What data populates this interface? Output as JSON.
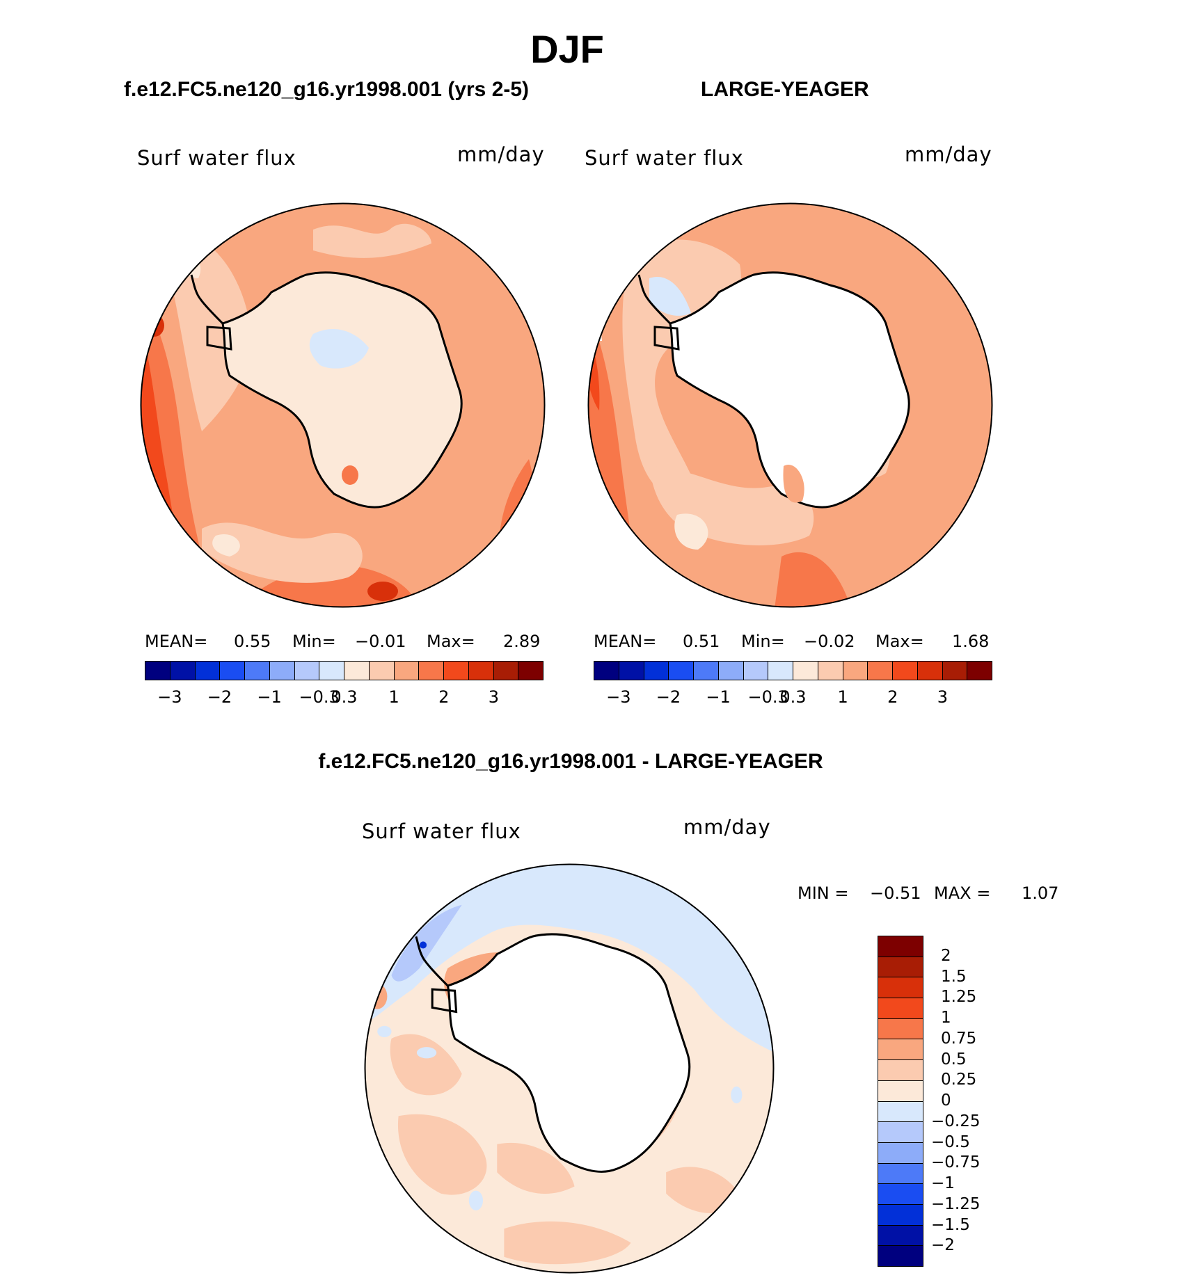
{
  "title": "DJF",
  "palette": [
    "#00007f",
    "#0011a6",
    "#0230d8",
    "#1a4df2",
    "#4d7af8",
    "#8dacf9",
    "#b5c9fb",
    "#d8e8fc",
    "#fce9d9",
    "#fbcbb0",
    "#f9a77f",
    "#f7774a",
    "#f2491c",
    "#d8300a",
    "#a81d05",
    "#7d0000"
  ],
  "panels": [
    {
      "title": "f.e12.FC5.ne120_g16.yr1998.001 (yrs 2-5)",
      "left_label": "Surf water flux",
      "right_label": "mm/day",
      "mean_label": "MEAN=",
      "mean": "0.55",
      "min_label": "Min=",
      "min": "−0.01",
      "max_label": "Max=",
      "max": "2.89",
      "colorbar_ticks": [
        "−3",
        "−2",
        "−1",
        "−0.3",
        "0.3",
        "1",
        "2",
        "3"
      ]
    },
    {
      "title": "LARGE-YEAGER",
      "left_label": "Surf water flux",
      "right_label": "mm/day",
      "mean_label": "MEAN=",
      "mean": "0.51",
      "min_label": "Min=",
      "min": "−0.02",
      "max_label": "Max=",
      "max": "1.68",
      "colorbar_ticks": [
        "−3",
        "−2",
        "−1",
        "−0.3",
        "0.3",
        "1",
        "2",
        "3"
      ]
    }
  ],
  "difference": {
    "title": "f.e12.FC5.ne120_g16.yr1998.001 - LARGE-YEAGER",
    "left_label": "Surf water flux",
    "right_label": "mm/day",
    "min_label": "MIN =",
    "min": "−0.51",
    "max_label": "MAX =",
    "max": "1.07",
    "colorbar_labels": [
      "2",
      "1.5",
      "1.25",
      "1",
      "0.75",
      "0.5",
      "0.25",
      "0",
      "−0.25",
      "−0.5",
      "−0.75",
      "−1",
      "−1.25",
      "−1.5",
      "−2"
    ]
  }
}
